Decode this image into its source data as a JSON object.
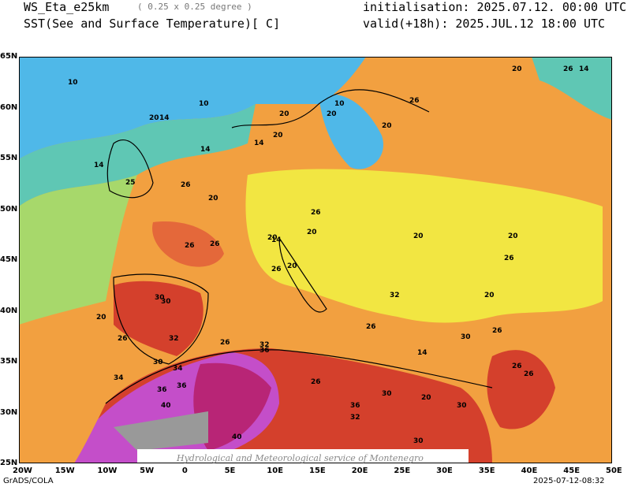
{
  "header": {
    "model": "WS_Eta_e25km",
    "resolution": "( 0.25 x 0.25 degree )",
    "variable": "SST(See and Surface Temperature)[ C]",
    "initialisation": "initialisation: 2025.07.12. 00:00 UTC",
    "valid": "valid(+18h): 2025.JUL.12 18:00 UTC"
  },
  "axes": {
    "x_ticks": [
      "20W",
      "15W",
      "10W",
      "5W",
      "0",
      "5E",
      "10E",
      "15E",
      "20E",
      "25E",
      "30E",
      "35E",
      "40E",
      "45E",
      "50E"
    ],
    "y_ticks": [
      "65N",
      "60N",
      "55N",
      "50N",
      "45N",
      "40N",
      "35N",
      "30N",
      "25N"
    ]
  },
  "contour_labels": {
    "items": [
      "10",
      "10",
      "10",
      "14",
      "20",
      "20",
      "20",
      "20",
      "26",
      "26",
      "14",
      "20",
      "14",
      "14",
      "26",
      "20",
      "26",
      "25",
      "14",
      "20",
      "20",
      "30",
      "26",
      "20",
      "14",
      "20",
      "26",
      "20",
      "20",
      "30",
      "26",
      "32",
      "26",
      "30",
      "32",
      "34",
      "36",
      "34",
      "36",
      "36",
      "40",
      "40",
      "30",
      "32",
      "26",
      "30",
      "32",
      "30",
      "14",
      "20",
      "26",
      "26",
      "26",
      "20",
      "20",
      "26",
      "26",
      "26",
      "30",
      "36"
    ]
  },
  "watermark": "Hydrological and Meteorological service of Montenegro",
  "footer": {
    "left": "GrADS/COLA",
    "right": "2025-07-12-08:32"
  },
  "colors": {
    "cold": "#4fb8e8",
    "cool": "#5fc7b4",
    "mild": "#a7d86b",
    "warm": "#f2e642",
    "hot": "#f2a040",
    "very_hot": "#d4402c",
    "extreme": "#b4185a",
    "desert": "#c44ec9"
  }
}
